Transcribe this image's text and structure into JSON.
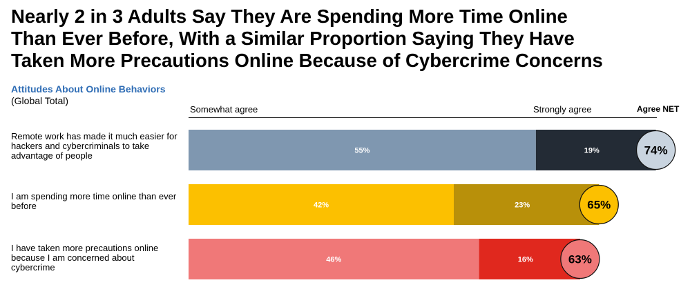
{
  "title": "Nearly 2 in 3 Adults Say They Are Spending More Time Online\nThan Ever Before, With a Similar Proportion Saying They Have\nTaken More Precautions Online Because of Cybercrime Concerns",
  "subtitle": "Attitudes About Online Behaviors",
  "subsubtitle": "(Global Total)",
  "legend": {
    "somewhat": "Somewhat agree",
    "strongly": "Strongly agree",
    "net": "Agree NET"
  },
  "chart_data": {
    "type": "bar",
    "orientation": "horizontal",
    "stacked": true,
    "title": "Nearly 2 in 3 Adults Say They Are Spending More Time Online Than Ever Before, With a Similar Proportion Saying They Have Taken More Precautions Online Because of Cybercrime Concerns",
    "subtitle": "Attitudes About Online Behaviors",
    "categories": [
      "Remote work has made it much easier for hackers and cybercriminals to take advantage of people",
      "I am spending more time online than ever before",
      "I have taken more precautions online because I am concerned about cybercrime"
    ],
    "series": [
      {
        "name": "Somewhat agree",
        "values": [
          55,
          42,
          46
        ]
      },
      {
        "name": "Strongly agree",
        "values": [
          19,
          23,
          16
        ]
      }
    ],
    "net": {
      "name": "Agree NET",
      "values": [
        74,
        65,
        63
      ]
    },
    "value_labels": {
      "somewhat": [
        "55%",
        "42%",
        "46%"
      ],
      "strongly": [
        "19%",
        "23%",
        "16%"
      ],
      "net": [
        "74%",
        "65%",
        "63%"
      ]
    },
    "colors": {
      "somewhat": [
        "#7f97b0",
        "#fcc000",
        "#f07878"
      ],
      "strongly": [
        "#232b35",
        "#b8900a",
        "#e0281e"
      ],
      "net_fill": [
        "#c9d4df",
        "#fcc000",
        "#f07878"
      ]
    },
    "xlim": [
      0,
      74
    ]
  }
}
